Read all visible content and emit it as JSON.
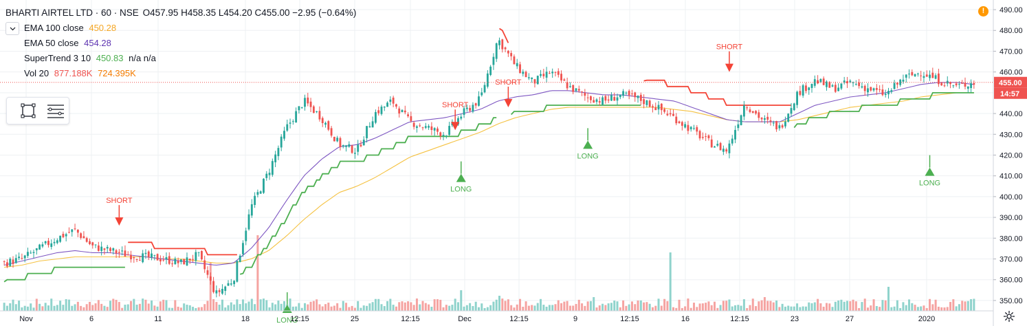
{
  "header": {
    "title": "BHARTI AIRTEL LTD · 60 · NSE",
    "ohlc_text": "O457.95 H458.35 L454.20 C455.00 −2.95 (−0.64%)"
  },
  "legend": {
    "ema100_label": "EMA 100 close",
    "ema100_value": "450.28",
    "ema50_label": "EMA 50 close",
    "ema50_value": "454.28",
    "supertrend_label": "SuperTrend 3 10",
    "supertrend_value": "450.83",
    "supertrend_na": "n/a n/a",
    "vol_label": "Vol 20",
    "vol_value1": "877.188K",
    "vol_value2": "724.395K"
  },
  "icons": {
    "collapse": "chevron-down-icon",
    "rectangle_tool": "rectangle-icon",
    "lines_tool": "lines-icon",
    "alert": "alert-icon",
    "settings": "gear-icon"
  },
  "alert_glyph": "!",
  "colors": {
    "up": "#26a69a",
    "down": "#ef5350",
    "vol_up": "#8fd3cc",
    "vol_down": "#f5a3a1",
    "ema100": "#f5c242",
    "ema50": "#7e57c2",
    "st_up": "#4caf50",
    "st_down": "#f44336",
    "price_label": "#ef5350",
    "grid": "#eef0f3",
    "axis_text": "#131722"
  },
  "chart_data": {
    "type": "candlestick",
    "y_axis": {
      "min": 345,
      "max": 492,
      "ticks": [
        350,
        360,
        370,
        380,
        390,
        400,
        410,
        420,
        430,
        440,
        450,
        460,
        470,
        480,
        490
      ]
    },
    "x_labels": [
      "Nov",
      "6",
      "11",
      "18",
      "12:15",
      "25",
      "12:15",
      "Dec",
      "12:15",
      "9",
      "12:15",
      "16",
      "12:15",
      "23",
      "27",
      "2020"
    ],
    "last_price_label": "455.00",
    "countdown_label": "14:57",
    "signals": [
      {
        "label": "SHORT",
        "type": "short"
      },
      {
        "label": "LONG",
        "type": "long"
      },
      {
        "label": "SHORT",
        "type": "short"
      },
      {
        "label": "LONG",
        "type": "long"
      },
      {
        "label": "SHORT",
        "type": "short"
      },
      {
        "label": "LONG",
        "type": "long"
      },
      {
        "label": "SHORT",
        "type": "short"
      },
      {
        "label": "LONG",
        "type": "long"
      }
    ],
    "close_anchors": [
      368,
      370,
      375,
      380,
      384,
      376,
      374,
      372,
      371,
      370,
      368,
      372,
      353,
      360,
      395,
      412,
      433,
      446,
      438,
      425,
      422,
      440,
      446,
      436,
      433,
      430,
      440,
      447,
      476,
      463,
      455,
      460,
      453,
      448,
      446,
      449,
      447,
      443,
      438,
      432,
      426,
      422,
      445,
      437,
      433,
      450,
      456,
      452,
      455,
      452,
      449,
      457,
      460,
      456,
      453,
      455
    ],
    "ema50_anchors": [
      367,
      369,
      371,
      373,
      374,
      373,
      373,
      372,
      371,
      370,
      369,
      368,
      367,
      368,
      375,
      385,
      398,
      410,
      418,
      424,
      425,
      428,
      432,
      436,
      437,
      438,
      440,
      442,
      446,
      448,
      449,
      451,
      451,
      450,
      449,
      449,
      448,
      447,
      446,
      443,
      440,
      437,
      436,
      436,
      436,
      440,
      444,
      446,
      448,
      449,
      450,
      452,
      454,
      455,
      455,
      454
    ],
    "ema100_anchors": [
      366,
      367,
      369,
      370,
      371,
      371,
      371,
      371,
      371,
      370,
      370,
      369,
      368,
      368,
      370,
      374,
      381,
      389,
      396,
      402,
      405,
      409,
      414,
      419,
      422,
      425,
      428,
      431,
      435,
      438,
      440,
      442,
      443,
      443,
      443,
      443,
      443,
      443,
      442,
      441,
      439,
      437,
      436,
      436,
      436,
      437,
      439,
      441,
      443,
      444,
      445,
      446,
      448,
      449,
      450,
      450
    ]
  }
}
